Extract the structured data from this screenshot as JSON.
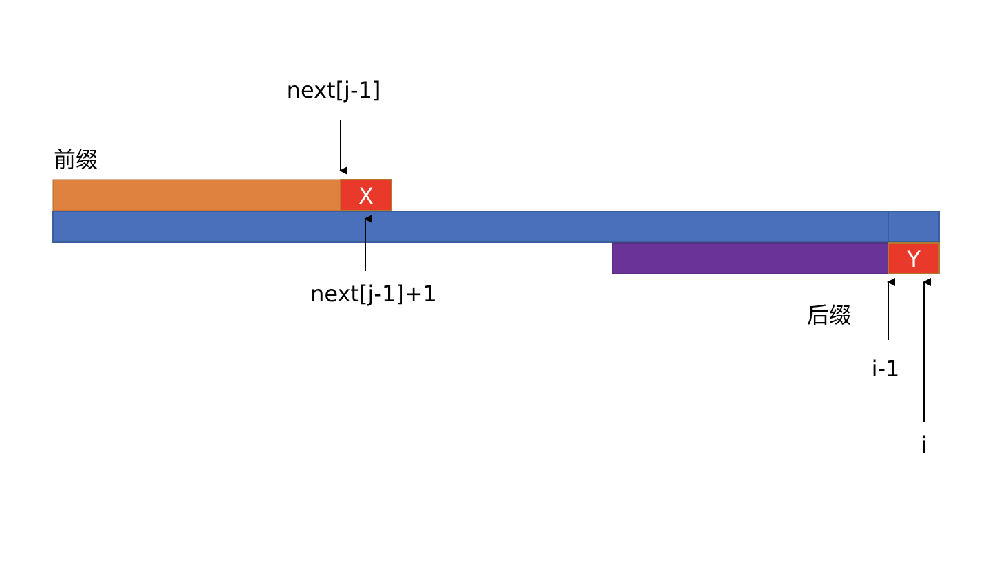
{
  "labels": {
    "prefix": "前缀",
    "suffix": "后缀",
    "next_j_minus_1": "next[j-1]",
    "next_j_minus_1_plus_1": "next[j-1]+1",
    "i_minus_1": "i-1",
    "i": "i"
  },
  "cells": {
    "x": "X",
    "y": "Y"
  },
  "colors": {
    "prefix_bar": "#E0823F",
    "main_bar": "#4A70BC",
    "main_bar_border": "#3B5E9E",
    "suffix_bar": "#6A3398",
    "highlight_cell": "#E8392B",
    "highlight_cell_border": "#B07A2C"
  }
}
